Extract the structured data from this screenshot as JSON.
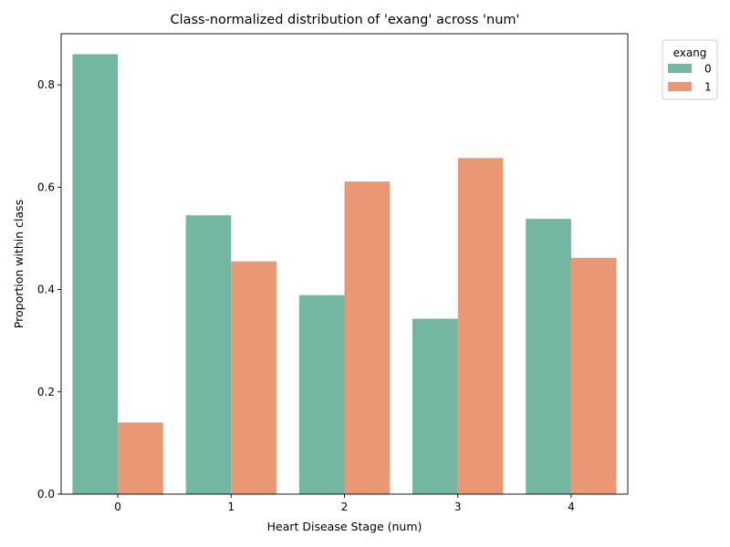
{
  "chart_data": {
    "type": "bar",
    "title": "Class-normalized distribution of 'exang' across 'num'",
    "xlabel": "Heart Disease Stage (num)",
    "ylabel": "Proportion within class",
    "categories": [
      "0",
      "1",
      "2",
      "3",
      "4"
    ],
    "series": [
      {
        "name": "0",
        "color": "#73b6a1",
        "values": [
          0.86,
          0.545,
          0.389,
          0.343,
          0.538
        ]
      },
      {
        "name": "1",
        "color": "#e99873",
        "values": [
          0.14,
          0.455,
          0.611,
          0.657,
          0.462
        ]
      }
    ],
    "ylim": [
      0,
      0.9
    ],
    "yticks": [
      0.0,
      0.2,
      0.4,
      0.6,
      0.8
    ],
    "ytick_labels": [
      "0.0",
      "0.2",
      "0.4",
      "0.6",
      "0.8"
    ],
    "grid": false,
    "legend": {
      "title": "exang",
      "placement": "outside-top-right"
    }
  }
}
